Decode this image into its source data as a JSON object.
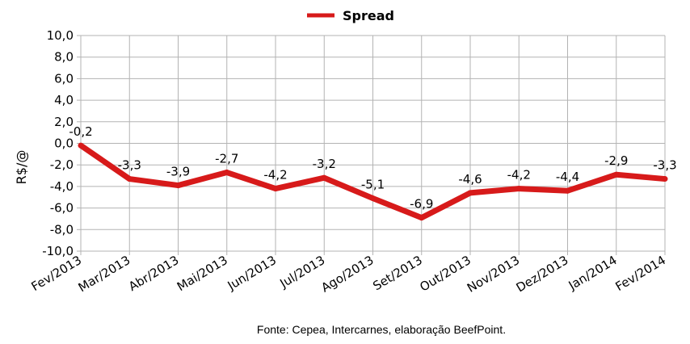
{
  "chart_data": {
    "type": "line",
    "categories": [
      "Fev/2013",
      "Mar/2013",
      "Abr/2013",
      "Mai/2013",
      "Jun/2013",
      "Jul/2013",
      "Ago/2013",
      "Set/2013",
      "Out/2013",
      "Nov/2013",
      "Dez/2013",
      "Jan/2014",
      "Fev/2014"
    ],
    "series": [
      {
        "name": "Spread",
        "values": [
          -0.2,
          -3.3,
          -3.9,
          -2.7,
          -4.2,
          -3.2,
          -5.1,
          -6.9,
          -4.6,
          -4.2,
          -4.4,
          -2.9,
          -3.3
        ],
        "labels": [
          "-0,2",
          "-3,3",
          "-3,9",
          "-2,7",
          "-4,2",
          "-3,2",
          "-5,1",
          "-6,9",
          "-4,6",
          "-4,2",
          "-4,4",
          "-2,9",
          "-3,3"
        ],
        "color": "#d71a1a"
      }
    ],
    "ylabel": "R$/@",
    "ylim": [
      -10,
      10
    ],
    "yticks": [
      10,
      8,
      6,
      4,
      2,
      0,
      -2,
      -4,
      -6,
      -8,
      -10
    ],
    "ytick_labels": [
      "10,0",
      "8,0",
      "6,0",
      "4,0",
      "2,0",
      "0,0",
      "-2,0",
      "-4,0",
      "-6,0",
      "-8,0",
      "-10,0"
    ],
    "grid": true,
    "legend_position": "top-center"
  },
  "source_note": "Fonte: Cepea, Intercarnes, elaboração BeefPoint.",
  "colors": {
    "grid": "#b3b3b3",
    "axis": "#b3b3b3",
    "line": "#d71a1a"
  }
}
